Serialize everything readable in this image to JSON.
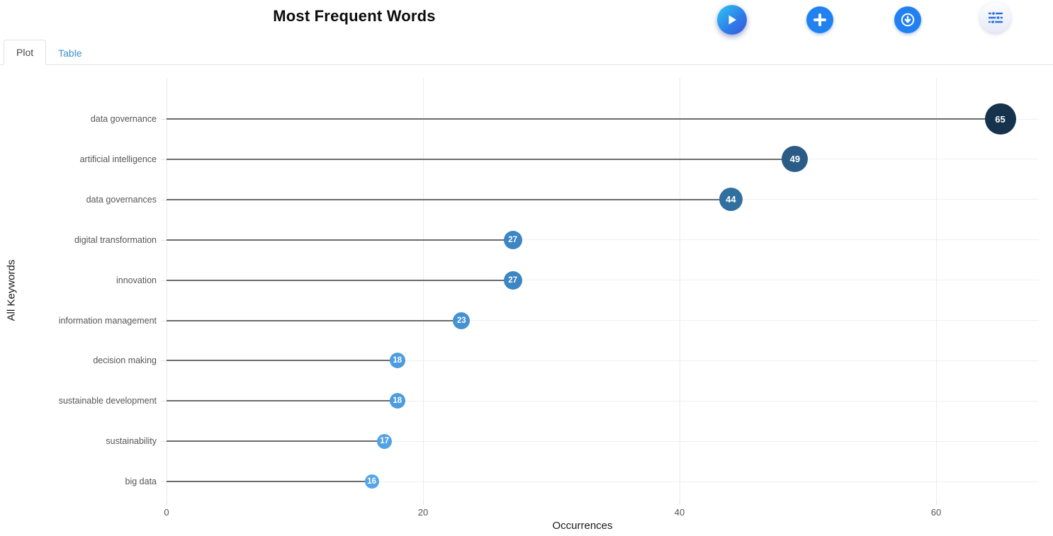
{
  "header": {
    "title": "Most Frequent Words",
    "actions": [
      {
        "name": "play-button",
        "icon": "play-icon"
      },
      {
        "name": "add-button",
        "icon": "plus-icon"
      },
      {
        "name": "download-button",
        "icon": "download-icon"
      },
      {
        "name": "filter-button",
        "icon": "sliders-icon"
      }
    ]
  },
  "tabs": [
    {
      "label": "Plot",
      "active": true
    },
    {
      "label": "Table",
      "active": false
    }
  ],
  "chart_data": {
    "type": "scatter",
    "variant": "lollipop",
    "orientation": "horizontal",
    "title": "Most Frequent Words",
    "xlabel": "Occurrences",
    "ylabel": "All Keywords",
    "xlim": [
      0,
      68
    ],
    "xticks": [
      0,
      20,
      40,
      60
    ],
    "grid": true,
    "categories": [
      "data governance",
      "artificial intelligence",
      "data governances",
      "digital transformation",
      "innovation",
      "information management",
      "decision making",
      "sustainable development",
      "sustainability",
      "big data"
    ],
    "values": [
      65,
      49,
      44,
      27,
      27,
      23,
      18,
      18,
      17,
      16
    ],
    "marker_colors": [
      "#16324c",
      "#2b5c87",
      "#316f9f",
      "#3c86c4",
      "#3c86c4",
      "#4492d2",
      "#4c9cdf",
      "#4c9cdf",
      "#52a2e5",
      "#55a5e8"
    ],
    "marker_sizes": [
      44,
      37,
      33,
      26,
      26,
      24,
      22,
      22,
      21,
      20
    ],
    "stem_color": "#6b6b6b",
    "grid_color": "#ebebeb",
    "label_color": "#565656",
    "accent_blue": "#2181f0"
  }
}
